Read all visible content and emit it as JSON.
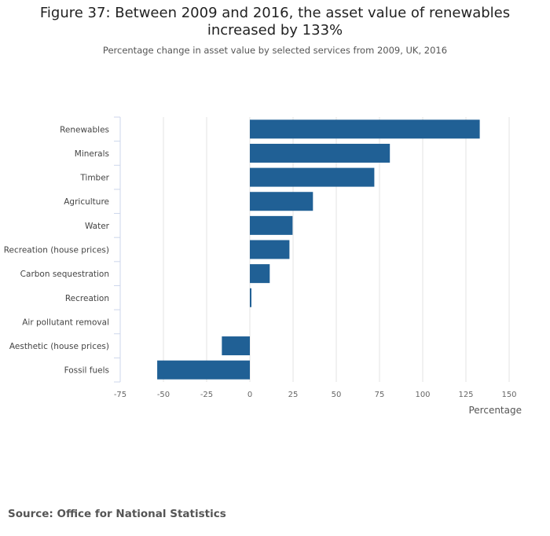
{
  "title": "Figure 37: Between 2009 and 2016, the asset value of renewables increased by 133%",
  "subtitle": "Percentage change in asset value by selected services from 2009, UK, 2016",
  "source": "Source: Office for National Statistics",
  "chart_data": {
    "type": "bar",
    "orientation": "horizontal",
    "categories": [
      "Renewables",
      "Minerals",
      "Timber",
      "Agriculture",
      "Water",
      "Recreation (house prices)",
      "Carbon sequestration",
      "Recreation",
      "Air pollutant removal",
      "Aesthetic (house prices)",
      "Fossil fuels"
    ],
    "values": [
      133,
      81,
      72,
      36.5,
      24.7,
      22.9,
      11.5,
      0.9,
      0,
      -16.2,
      -53.6
    ],
    "xlabel": "Percentage",
    "xlim": [
      -75,
      150
    ],
    "xticks": [
      -75,
      -50,
      -25,
      0,
      25,
      50,
      75,
      100,
      125,
      150
    ],
    "grid": true,
    "bar_color": "#206095"
  }
}
